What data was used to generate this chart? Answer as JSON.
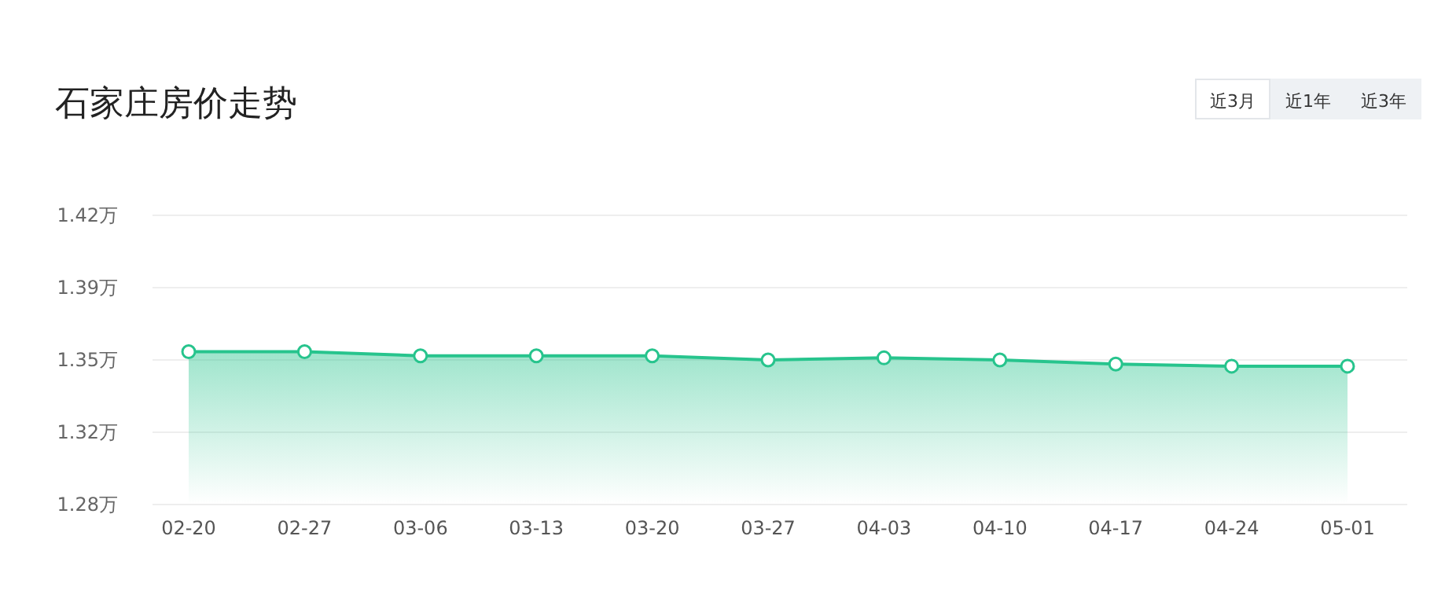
{
  "chart_data": {
    "type": "area",
    "title": "石家庄房价走势",
    "categories": [
      "02-20",
      "02-27",
      "03-06",
      "03-13",
      "03-20",
      "03-27",
      "04-03",
      "04-10",
      "04-17",
      "04-24",
      "05-01"
    ],
    "values": [
      1.354,
      1.354,
      1.352,
      1.352,
      1.352,
      1.35,
      1.351,
      1.35,
      1.348,
      1.347,
      1.347
    ],
    "color": "#27c48d",
    "ylim": [
      1.28,
      1.42
    ],
    "yticks": [
      {
        "value": 1.28,
        "label": "1.28万"
      },
      {
        "value": 1.315,
        "label": "1.32万"
      },
      {
        "value": 1.35,
        "label": "1.35万"
      },
      {
        "value": 1.385,
        "label": "1.39万"
      },
      {
        "value": 1.42,
        "label": "1.42万"
      }
    ],
    "grid": "y",
    "marker": "circle",
    "annotations": [
      "近3月",
      "近1年",
      "近3年"
    ]
  }
}
